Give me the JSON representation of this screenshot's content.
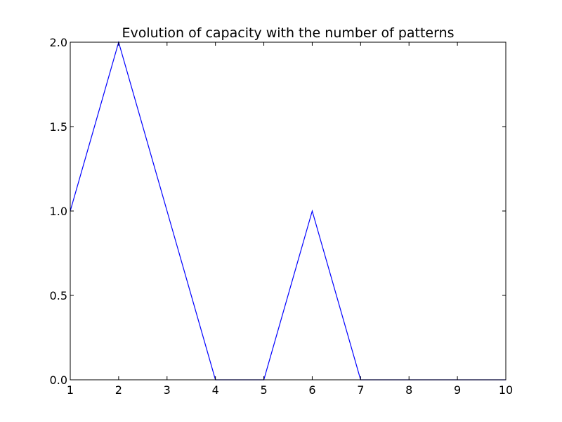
{
  "chart_data": {
    "type": "line",
    "title": "Evolution of capacity with the number of patterns",
    "xlabel": "",
    "ylabel": "",
    "x": [
      1,
      2,
      3,
      4,
      5,
      6,
      7,
      8,
      9,
      10
    ],
    "series": [
      {
        "values": [
          1,
          2,
          1,
          0,
          0,
          1,
          0,
          0,
          0,
          0
        ],
        "color": "#0000ff"
      }
    ],
    "xlim": [
      1,
      10
    ],
    "ylim": [
      0,
      2
    ],
    "xticks": [
      1,
      2,
      3,
      4,
      5,
      6,
      7,
      8,
      9,
      10
    ],
    "xtick_labels": [
      "1",
      "2",
      "3",
      "4",
      "5",
      "6",
      "7",
      "8",
      "9",
      "10"
    ],
    "yticks": [
      0,
      0.5,
      1,
      1.5,
      2
    ],
    "ytick_labels": [
      "0.0",
      "0.5",
      "1.0",
      "1.5",
      "2.0"
    ],
    "grid": false,
    "legend": false
  }
}
